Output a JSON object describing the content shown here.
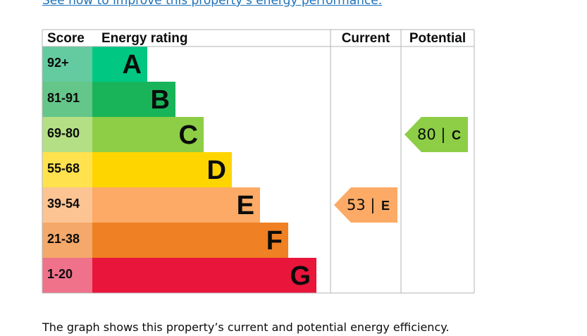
{
  "link_text": "See how to improve this property's energy performance.",
  "caption": "The graph shows this property’s current and potential energy efficiency.",
  "chart_data": {
    "type": "table",
    "headers": {
      "score": "Score",
      "rating": "Energy rating",
      "current": "Current",
      "potential": "Potential"
    },
    "bands": [
      {
        "score": "92+",
        "letter": "A",
        "band_color": "#00c781",
        "score_color": "#64cba0"
      },
      {
        "score": "81-91",
        "letter": "B",
        "band_color": "#19b459",
        "score_color": "#64c689"
      },
      {
        "score": "69-80",
        "letter": "C",
        "band_color": "#8dce46",
        "score_color": "#b4df84"
      },
      {
        "score": "55-68",
        "letter": "D",
        "band_color": "#ffd500",
        "score_color": "#ffe24d"
      },
      {
        "score": "39-54",
        "letter": "E",
        "band_color": "#fcaa65",
        "score_color": "#fdc493"
      },
      {
        "score": "21-38",
        "letter": "F",
        "band_color": "#ef8023",
        "score_color": "#f4a86a"
      },
      {
        "score": "1-20",
        "letter": "G",
        "band_color": "#e9153b",
        "score_color": "#f0728a"
      }
    ],
    "current": {
      "value": 53,
      "letter": "E",
      "label": "53 |",
      "color": "#fcaa65"
    },
    "potential": {
      "value": 80,
      "letter": "C",
      "label": "80 |",
      "color": "#8dce46"
    }
  }
}
